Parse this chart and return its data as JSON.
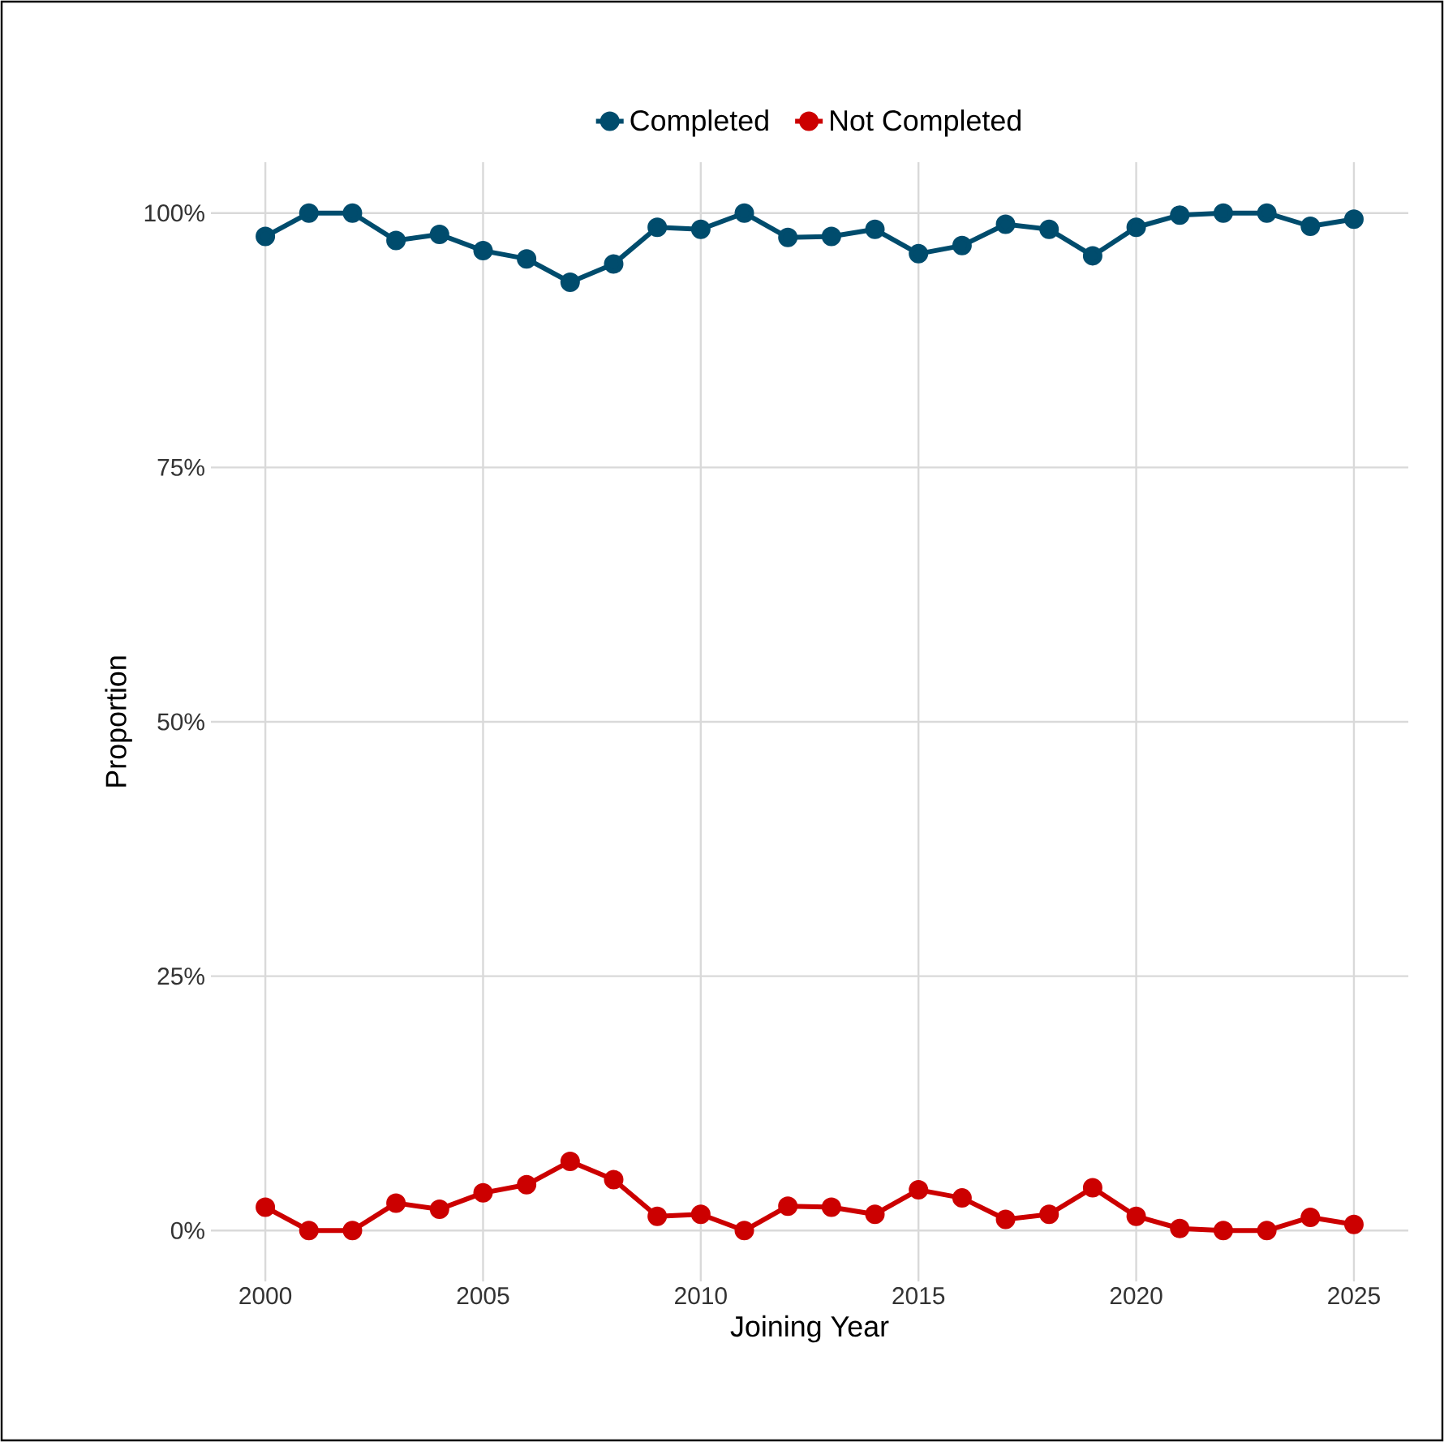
{
  "chart_data": {
    "type": "line",
    "xlabel": "Joining Year",
    "ylabel": "Proportion",
    "x": [
      2000,
      2001,
      2002,
      2003,
      2004,
      2005,
      2006,
      2007,
      2008,
      2009,
      2010,
      2011,
      2012,
      2013,
      2014,
      2015,
      2016,
      2017,
      2018,
      2019,
      2020,
      2021,
      2022,
      2023,
      2024,
      2025
    ],
    "series": [
      {
        "name": "Completed",
        "color": "#004c6d",
        "values": [
          97.7,
          100,
          100,
          97.3,
          97.9,
          96.3,
          95.5,
          93.2,
          95.0,
          98.6,
          98.4,
          100,
          97.6,
          97.7,
          98.4,
          96.0,
          96.8,
          98.9,
          98.4,
          95.8,
          98.6,
          99.8,
          100,
          100,
          98.7,
          99.4
        ]
      },
      {
        "name": "Not Completed",
        "color": "#cc0000",
        "values": [
          2.3,
          0,
          0,
          2.7,
          2.1,
          3.7,
          4.5,
          6.8,
          5.0,
          1.4,
          1.6,
          0,
          2.4,
          2.3,
          1.6,
          4.0,
          3.2,
          1.1,
          1.6,
          4.2,
          1.4,
          0.2,
          0,
          0,
          1.3,
          0.6
        ]
      }
    ],
    "xlim": [
      1998.75,
      2026.25
    ],
    "ylim": [
      -5,
      105
    ],
    "xticks": [
      2000,
      2005,
      2010,
      2015,
      2020,
      2025
    ],
    "yticks": [
      {
        "value": 0,
        "label": "0%"
      },
      {
        "value": 25,
        "label": "25%"
      },
      {
        "value": 50,
        "label": "50%"
      },
      {
        "value": 75,
        "label": "75%"
      },
      {
        "value": 100,
        "label": "100%"
      }
    ],
    "grid": true,
    "legend": "top",
    "marker": "circle",
    "line_style": "solid"
  }
}
